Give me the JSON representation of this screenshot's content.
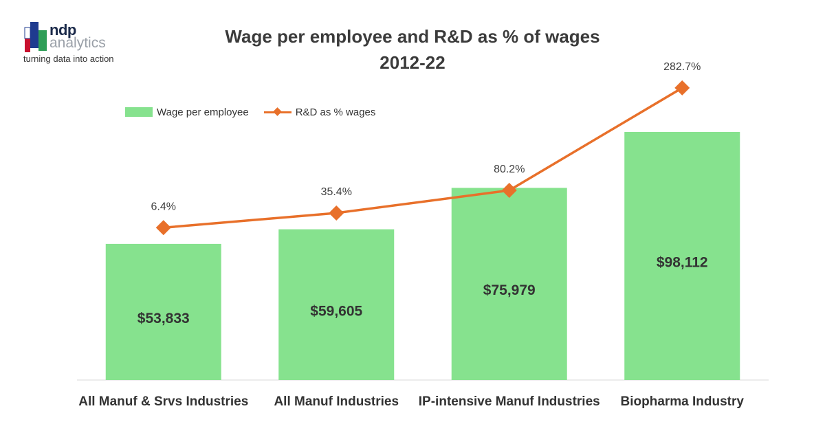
{
  "logo": {
    "name_line1": "ndp",
    "name_line2": "analytics",
    "tagline": "turning data into action"
  },
  "chart_data": {
    "type": "bar",
    "title_lines": [
      "Wage per employee and R&D as % of wages",
      "2012-22"
    ],
    "categories": [
      "All Manuf & Srvs Industries",
      "All Manuf Industries",
      "IP-intensive Manuf Industries",
      "Biopharma Industry"
    ],
    "series": [
      {
        "name": "Wage per employee",
        "type": "bar",
        "values": [
          53833,
          59605,
          75979,
          98112
        ],
        "labels": [
          "$53,833",
          "$59,605",
          "$75,979",
          "$98,112"
        ],
        "color": "#86e28e"
      },
      {
        "name": "R&D as % wages",
        "type": "line",
        "values": [
          6.4,
          35.4,
          80.2,
          282.7
        ],
        "labels": [
          "6.4%",
          "35.4%",
          "80.2%",
          "282.7%"
        ],
        "color": "#e8702a"
      }
    ],
    "legend_position": "top-left",
    "grid": false
  }
}
